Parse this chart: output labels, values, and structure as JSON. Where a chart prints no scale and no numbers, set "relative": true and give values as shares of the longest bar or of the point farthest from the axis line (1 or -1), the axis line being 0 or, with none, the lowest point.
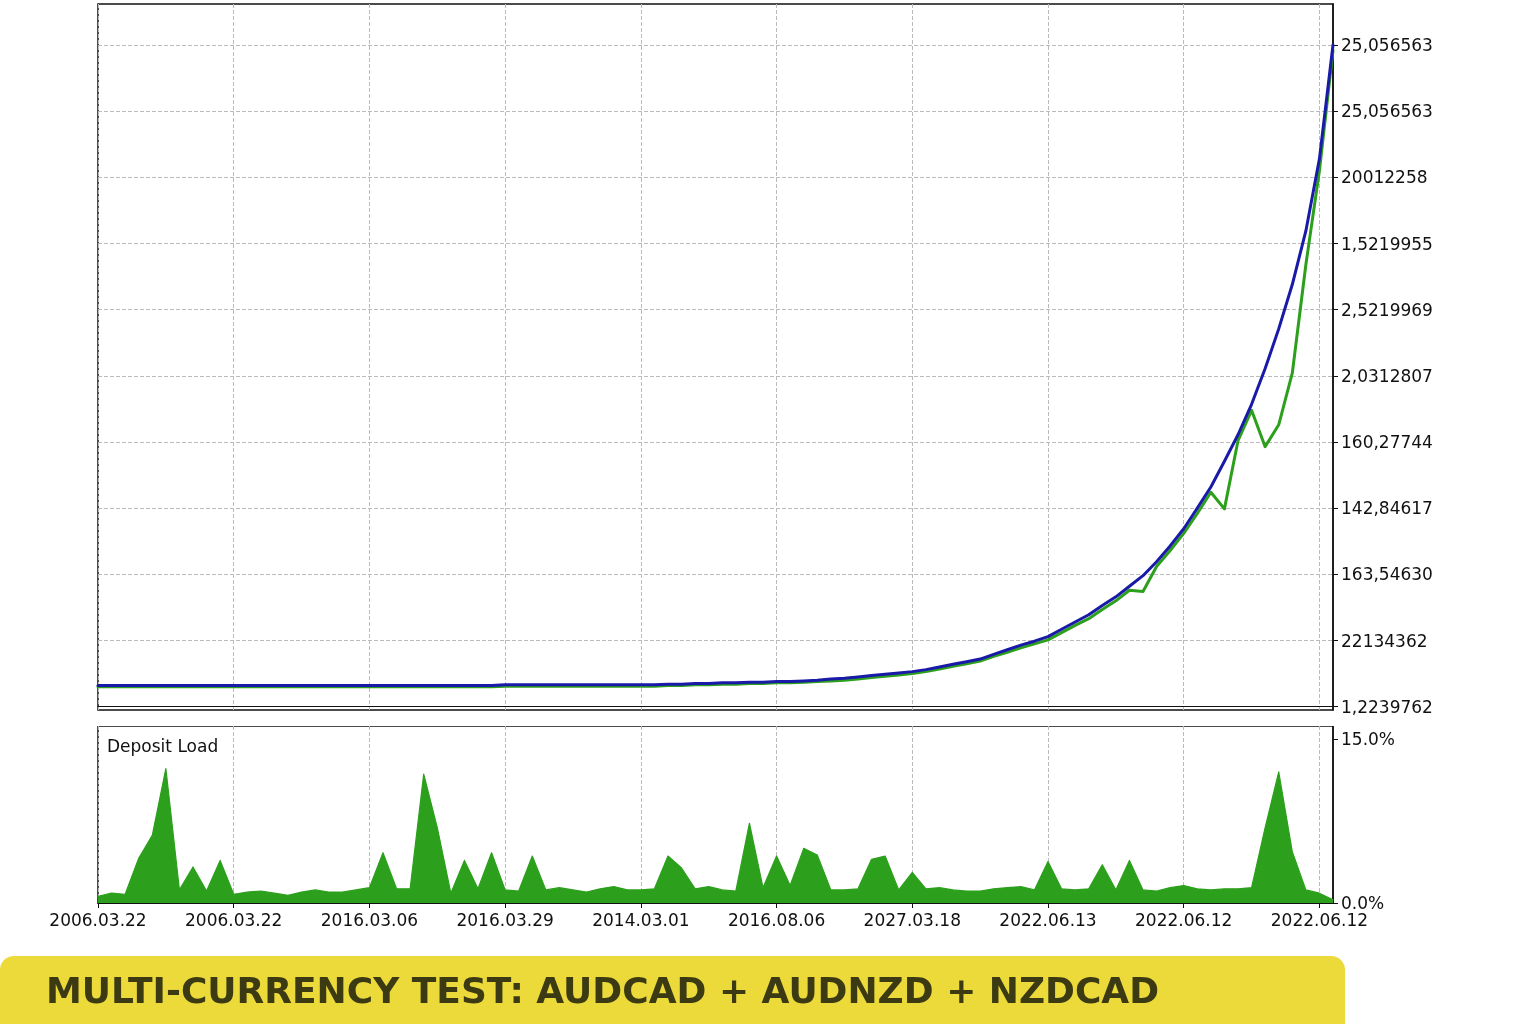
{
  "chart_data": [
    {
      "type": "line",
      "title": "MULTI-CURRENCY TEST: AUDCAD + AUDNZD + NZDCAD",
      "relative": true,
      "tick_labels": false,
      "grid": true,
      "marker": "none",
      "line_style": "solid",
      "annotations": [
        "1,2239762",
        "22134362",
        "163,54630",
        "142,84617",
        "160,27744",
        "2,0312807",
        "2,5219969",
        "1,5219955",
        "20012258",
        "25,056563",
        "25,056563"
      ],
      "categories": [
        "2006.03.22",
        null,
        null,
        null,
        null,
        null,
        null,
        null,
        null,
        null,
        "2006.03.22",
        null,
        null,
        null,
        null,
        null,
        null,
        null,
        null,
        null,
        "2016.03.06",
        null,
        null,
        null,
        null,
        null,
        null,
        null,
        null,
        null,
        "2016.03.29",
        null,
        null,
        null,
        null,
        null,
        null,
        null,
        null,
        null,
        "2014.03.01",
        null,
        null,
        null,
        null,
        null,
        null,
        null,
        null,
        null,
        "2016.08.06",
        null,
        null,
        null,
        null,
        null,
        null,
        null,
        null,
        null,
        "2027.03.18",
        null,
        null,
        null,
        null,
        null,
        null,
        null,
        null,
        null,
        "2022.06.13",
        null,
        null,
        null,
        null,
        null,
        null,
        null,
        null,
        null,
        "2022.06.12",
        null,
        null,
        null,
        null,
        null,
        null,
        null,
        null,
        null,
        "2022.06.12",
        null
      ],
      "series": [
        {
          "color": "#2ca01c",
          "values": [
            0.03,
            0.03,
            0.03,
            0.03,
            0.03,
            0.03,
            0.03,
            0.03,
            0.03,
            0.03,
            0.03,
            0.03,
            0.03,
            0.03,
            0.03,
            0.03,
            0.03,
            0.03,
            0.03,
            0.03,
            0.03,
            0.03,
            0.03,
            0.03,
            0.03,
            0.03,
            0.03,
            0.03,
            0.03,
            0.03,
            0.031,
            0.031,
            0.031,
            0.031,
            0.031,
            0.031,
            0.031,
            0.031,
            0.031,
            0.031,
            0.031,
            0.031,
            0.032,
            0.032,
            0.033,
            0.033,
            0.034,
            0.034,
            0.035,
            0.035,
            0.036,
            0.036,
            0.037,
            0.038,
            0.039,
            0.04,
            0.042,
            0.044,
            0.046,
            0.048,
            0.05,
            0.053,
            0.057,
            0.061,
            0.065,
            0.069,
            0.076,
            0.082,
            0.089,
            0.095,
            0.101,
            0.112,
            0.123,
            0.133,
            0.147,
            0.16,
            0.176,
            0.174,
            0.212,
            0.236,
            0.262,
            0.292,
            0.324,
            0.299,
            0.402,
            0.448,
            0.393,
            0.426,
            0.504,
            0.668,
            0.81,
            0.992
          ]
        },
        {
          "color": "#1a1aa8",
          "values": [
            0.032,
            0.032,
            0.032,
            0.032,
            0.032,
            0.032,
            0.032,
            0.032,
            0.032,
            0.032,
            0.032,
            0.032,
            0.032,
            0.032,
            0.032,
            0.032,
            0.032,
            0.032,
            0.032,
            0.032,
            0.032,
            0.032,
            0.032,
            0.032,
            0.032,
            0.032,
            0.032,
            0.032,
            0.032,
            0.032,
            0.033,
            0.033,
            0.033,
            0.033,
            0.033,
            0.033,
            0.033,
            0.033,
            0.033,
            0.033,
            0.033,
            0.033,
            0.034,
            0.034,
            0.035,
            0.035,
            0.036,
            0.036,
            0.037,
            0.037,
            0.038,
            0.038,
            0.039,
            0.04,
            0.042,
            0.043,
            0.045,
            0.047,
            0.049,
            0.051,
            0.053,
            0.056,
            0.06,
            0.064,
            0.068,
            0.072,
            0.079,
            0.086,
            0.093,
            0.099,
            0.106,
            0.117,
            0.128,
            0.139,
            0.153,
            0.166,
            0.182,
            0.198,
            0.219,
            0.243,
            0.269,
            0.3,
            0.332,
            0.371,
            0.411,
            0.457,
            0.511,
            0.571,
            0.638,
            0.719,
            0.828,
            1
          ]
        }
      ]
    },
    {
      "type": "area",
      "title": "Deposit Load",
      "grid": "x",
      "marker": "none",
      "line_style": "solid",
      "categories": [
        "2006.03.22",
        null,
        null,
        null,
        null,
        null,
        null,
        null,
        null,
        null,
        "2006.03.22",
        null,
        null,
        null,
        null,
        null,
        null,
        null,
        null,
        null,
        "2016.03.06",
        null,
        null,
        null,
        null,
        null,
        null,
        null,
        null,
        null,
        "2016.03.29",
        null,
        null,
        null,
        null,
        null,
        null,
        null,
        null,
        null,
        "2014.03.01",
        null,
        null,
        null,
        null,
        null,
        null,
        null,
        null,
        null,
        "2016.08.06",
        null,
        null,
        null,
        null,
        null,
        null,
        null,
        null,
        null,
        "2027.03.18",
        null,
        null,
        null,
        null,
        null,
        null,
        null,
        null,
        null,
        "2022.06.13",
        null,
        null,
        null,
        null,
        null,
        null,
        null,
        null,
        null,
        "2022.06.12",
        null,
        null,
        null,
        null,
        null,
        null,
        null,
        null,
        null,
        "2022.06.12",
        null
      ],
      "ylim": [
        0,
        16.2
      ],
      "yticks": [
        {
          "value": 0,
          "label": "0.0%"
        },
        {
          "value": 15,
          "label": "15.0%"
        }
      ],
      "series": [
        {
          "color": "#2ca01c",
          "values": [
            0.6,
            0.9,
            0.8,
            4.1,
            6.2,
            12.3,
            1.2,
            3.3,
            1.1,
            3.9,
            0.8,
            1.0,
            1.1,
            0.9,
            0.7,
            1.0,
            1.2,
            1.0,
            1.0,
            1.2,
            1.4,
            4.6,
            1.3,
            1.3,
            11.8,
            6.9,
            0.9,
            3.9,
            1.3,
            4.6,
            1.2,
            1.1,
            4.3,
            1.2,
            1.4,
            1.2,
            1.0,
            1.3,
            1.5,
            1.2,
            1.2,
            1.3,
            4.3,
            3.2,
            1.3,
            1.5,
            1.2,
            1.1,
            7.3,
            1.4,
            4.3,
            1.6,
            5.0,
            4.4,
            1.2,
            1.2,
            1.3,
            4.0,
            4.3,
            1.2,
            2.8,
            1.3,
            1.4,
            1.2,
            1.1,
            1.1,
            1.3,
            1.4,
            1.5,
            1.2,
            3.8,
            1.3,
            1.2,
            1.3,
            3.5,
            1.2,
            3.9,
            1.2,
            1.1,
            1.4,
            1.6,
            1.3,
            1.2,
            1.3,
            1.3,
            1.4,
            6.9,
            12.0,
            4.7,
            1.2,
            0.9,
            0.3
          ]
        }
      ]
    }
  ]
}
